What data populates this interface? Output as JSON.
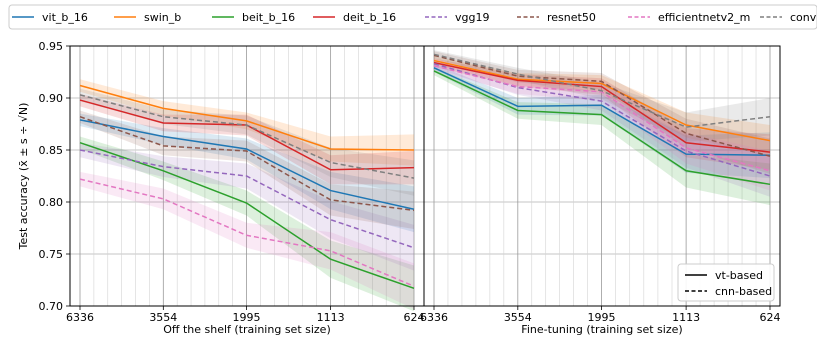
{
  "chart_data": {
    "type": "line",
    "ylabel": "Test accuracy (x̄ ± s ÷ √N)",
    "ylim": [
      0.7,
      0.95
    ],
    "yticks": [
      "0.70",
      "0.75",
      "0.80",
      "0.85",
      "0.90",
      "0.95"
    ],
    "grid": true,
    "x": [
      6336,
      3554,
      1995,
      1113,
      624
    ],
    "xticks": [
      "6336",
      "3554",
      "1995",
      "1113",
      "624"
    ],
    "legend": {
      "placement": "top",
      "entries": [
        {
          "name": "vit_b_16",
          "color": "#1f77b4",
          "dash": false
        },
        {
          "name": "swin_b",
          "color": "#ff7f0e",
          "dash": false
        },
        {
          "name": "beit_b_16",
          "color": "#2ca02c",
          "dash": false
        },
        {
          "name": "deit_b_16",
          "color": "#d62728",
          "dash": false
        },
        {
          "name": "vgg19",
          "color": "#9467bd",
          "dash": true
        },
        {
          "name": "resnet50",
          "color": "#8c564b",
          "dash": true
        },
        {
          "name": "efficientnetv2_m",
          "color": "#e377c2",
          "dash": true
        },
        {
          "name": "convnext_b",
          "color": "#7f7f7f",
          "dash": true
        }
      ]
    },
    "style_legend": {
      "placement": "lower-right",
      "entries": [
        {
          "name": "vt-based",
          "dash": false
        },
        {
          "name": "cnn-based",
          "dash": true
        }
      ]
    },
    "panels": [
      {
        "xlabel": "Off the shelf (training set size)",
        "series": [
          {
            "name": "vit_b_16",
            "values": [
              0.879,
              0.863,
              0.851,
              0.811,
              0.793
            ],
            "err": [
              0.006,
              0.008,
              0.01,
              0.018,
              0.022
            ]
          },
          {
            "name": "swin_b",
            "values": [
              0.912,
              0.89,
              0.878,
              0.851,
              0.85
            ],
            "err": [
              0.006,
              0.007,
              0.008,
              0.012,
              0.015
            ]
          },
          {
            "name": "beit_b_16",
            "values": [
              0.857,
              0.83,
              0.799,
              0.745,
              0.717
            ],
            "err": [
              0.006,
              0.009,
              0.012,
              0.018,
              0.022
            ]
          },
          {
            "name": "deit_b_16",
            "values": [
              0.898,
              0.876,
              0.874,
              0.831,
              0.833
            ],
            "err": [
              0.006,
              0.008,
              0.01,
              0.014,
              0.016
            ]
          },
          {
            "name": "vgg19",
            "values": [
              0.85,
              0.834,
              0.825,
              0.783,
              0.756
            ],
            "err": [
              0.007,
              0.01,
              0.012,
              0.018,
              0.022
            ]
          },
          {
            "name": "resnet50",
            "values": [
              0.882,
              0.854,
              0.849,
              0.802,
              0.792
            ],
            "err": [
              0.006,
              0.009,
              0.01,
              0.015,
              0.018
            ]
          },
          {
            "name": "efficientnetv2_m",
            "values": [
              0.822,
              0.803,
              0.768,
              0.753,
              0.719
            ],
            "err": [
              0.007,
              0.01,
              0.012,
              0.018,
              0.022
            ]
          },
          {
            "name": "convnext_b",
            "values": [
              0.903,
              0.882,
              0.874,
              0.838,
              0.823
            ],
            "err": [
              0.006,
              0.007,
              0.009,
              0.014,
              0.017
            ]
          }
        ]
      },
      {
        "xlabel": "Fine-tuning (training set size)",
        "series": [
          {
            "name": "vit_b_16",
            "values": [
              0.929,
              0.892,
              0.893,
              0.846,
              0.845
            ],
            "err": [
              0.004,
              0.008,
              0.01,
              0.018,
              0.022
            ]
          },
          {
            "name": "swin_b",
            "values": [
              0.936,
              0.918,
              0.914,
              0.874,
              0.859
            ],
            "err": [
              0.004,
              0.006,
              0.008,
              0.012,
              0.015
            ]
          },
          {
            "name": "beit_b_16",
            "values": [
              0.926,
              0.888,
              0.884,
              0.83,
              0.817
            ],
            "err": [
              0.004,
              0.008,
              0.01,
              0.016,
              0.02
            ]
          },
          {
            "name": "deit_b_16",
            "values": [
              0.934,
              0.917,
              0.911,
              0.857,
              0.848
            ],
            "err": [
              0.004,
              0.006,
              0.008,
              0.014,
              0.017
            ]
          },
          {
            "name": "vgg19",
            "values": [
              0.933,
              0.91,
              0.897,
              0.849,
              0.825
            ],
            "err": [
              0.004,
              0.007,
              0.009,
              0.016,
              0.02
            ]
          },
          {
            "name": "resnet50",
            "values": [
              0.941,
              0.921,
              0.916,
              0.866,
              0.844
            ],
            "err": [
              0.004,
              0.006,
              0.008,
              0.014,
              0.017
            ]
          },
          {
            "name": "efficientnetv2_m",
            "values": [
              0.931,
              0.911,
              0.906,
              0.852,
              0.83
            ],
            "err": [
              0.004,
              0.007,
              0.009,
              0.015,
              0.019
            ]
          },
          {
            "name": "convnext_b",
            "values": [
              0.942,
              0.923,
              0.907,
              0.872,
              0.882
            ],
            "err": [
              0.004,
              0.006,
              0.008,
              0.014,
              0.018
            ]
          }
        ]
      }
    ]
  }
}
